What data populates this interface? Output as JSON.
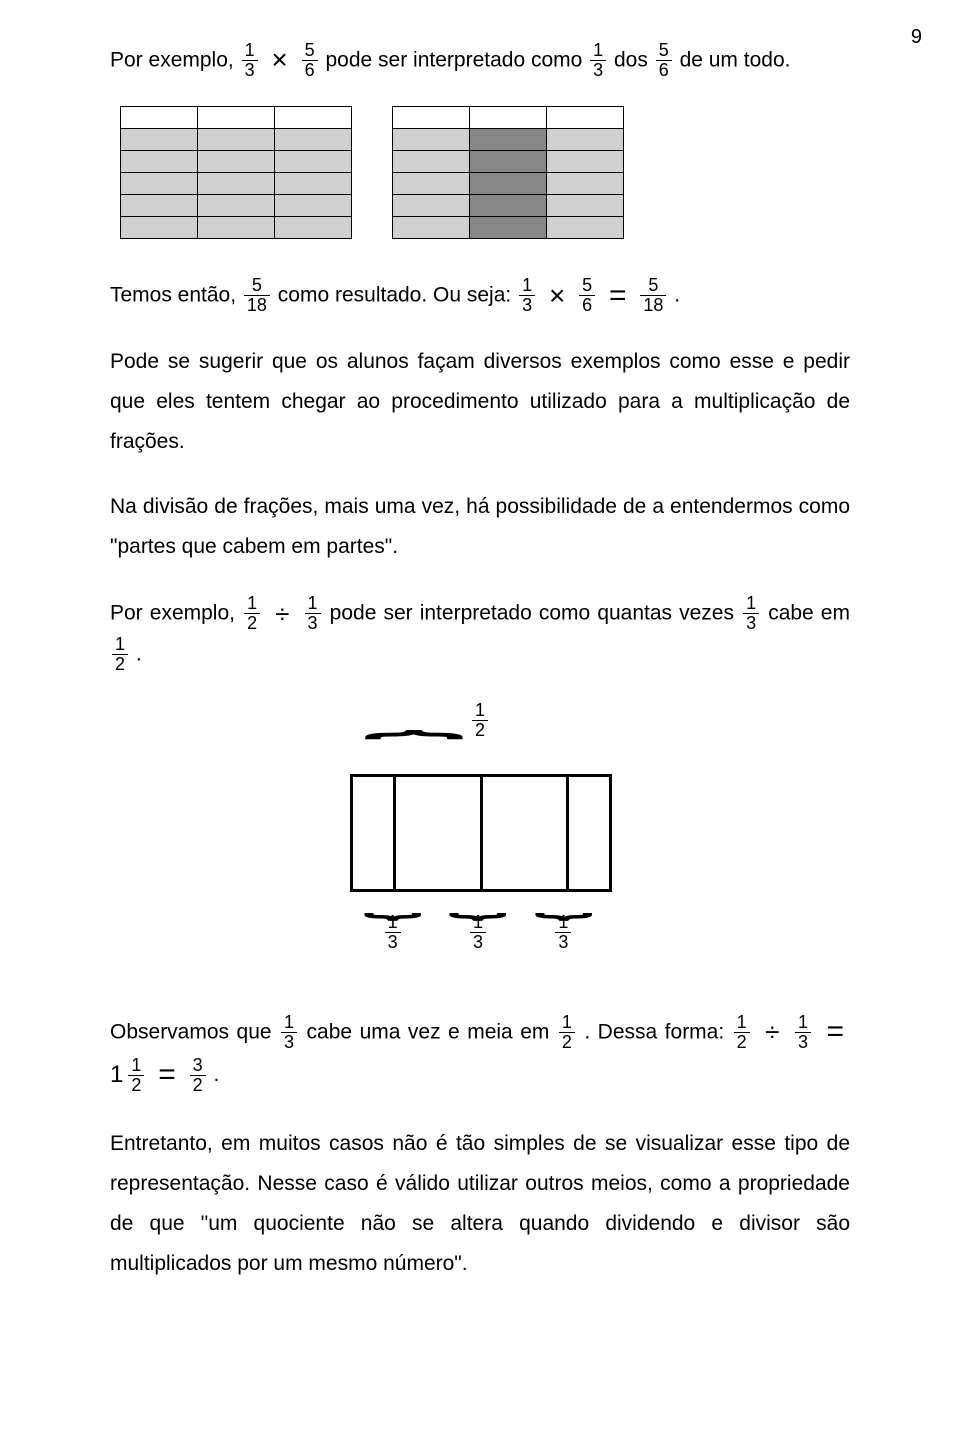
{
  "page_number": "9",
  "p1": {
    "t1": "Por exemplo, ",
    "f1": {
      "n": "1",
      "d": "3"
    },
    "op1": "×",
    "f2": {
      "n": "5",
      "d": "6"
    },
    "t2": " pode ser interpretado como ",
    "f3": {
      "n": "1",
      "d": "3"
    },
    "t3": " dos ",
    "f4": {
      "n": "5",
      "d": "6"
    },
    "t4": " de um todo."
  },
  "grid_left": {
    "rows": 6,
    "cols": 3,
    "cells": [
      [
        "w",
        "w",
        "w"
      ],
      [
        "l",
        "l",
        "l"
      ],
      [
        "l",
        "l",
        "l"
      ],
      [
        "l",
        "l",
        "l"
      ],
      [
        "l",
        "l",
        "l"
      ],
      [
        "l",
        "l",
        "l"
      ]
    ]
  },
  "grid_right": {
    "rows": 6,
    "cols": 3,
    "cells": [
      [
        "w",
        "w",
        "w"
      ],
      [
        "l",
        "d",
        "l"
      ],
      [
        "l",
        "d",
        "l"
      ],
      [
        "l",
        "d",
        "l"
      ],
      [
        "l",
        "d",
        "l"
      ],
      [
        "l",
        "d",
        "l"
      ]
    ]
  },
  "grid_colors": {
    "w": "#ffffff",
    "l": "#d0d0d0",
    "d": "#878787",
    "border": "#000000"
  },
  "p2": {
    "t1": "Temos então, ",
    "f1": {
      "n": "5",
      "d": "18"
    },
    "t2": " como resultado. Ou seja: ",
    "f2": {
      "n": "1",
      "d": "3"
    },
    "op1": "×",
    "f3": {
      "n": "5",
      "d": "6"
    },
    "eq": "=",
    "f4": {
      "n": "5",
      "d": "18"
    },
    "t3": " ."
  },
  "p3": "Pode se sugerir que os alunos façam diversos exemplos como esse e pedir que eles tentem chegar ao procedimento utilizado para a multiplicação de frações.",
  "p4": "Na divisão de frações, mais uma vez, há possibilidade de a entendermos como \"partes que cabem em partes\".",
  "p5": {
    "t1": "Por exemplo, ",
    "f1": {
      "n": "1",
      "d": "2"
    },
    "op1": "÷",
    "f2": {
      "n": "1",
      "d": "3"
    },
    "t2": " pode ser interpretado como quantas vezes ",
    "f3": {
      "n": "1",
      "d": "3"
    },
    "t3": " cabe em ",
    "f4": {
      "n": "1",
      "d": "2"
    },
    "t4": " ."
  },
  "fig": {
    "top_label": {
      "n": "1",
      "d": "2"
    },
    "bottom_labels": [
      {
        "n": "1",
        "d": "3"
      },
      {
        "n": "1",
        "d": "3"
      },
      {
        "n": "1",
        "d": "3"
      }
    ]
  },
  "p6": {
    "t1": "Observamos que ",
    "f1": {
      "n": "1",
      "d": "3"
    },
    "t2": " cabe uma vez e meia em ",
    "f2": {
      "n": "1",
      "d": "2"
    },
    "t3": " . Dessa forma: ",
    "f3": {
      "n": "1",
      "d": "2"
    },
    "op1": "÷",
    "f4": {
      "n": "1",
      "d": "3"
    },
    "eq1": "=",
    "mix": {
      "w": "1",
      "n": "1",
      "d": "2"
    },
    "eq2": "=",
    "f5": {
      "n": "3",
      "d": "2"
    },
    "t4": "."
  },
  "p7": "Entretanto, em muitos casos não é tão simples de se visualizar esse tipo de representação. Nesse caso é válido utilizar outros meios, como a propriedade de que \"um quociente não se altera quando dividendo e divisor são multiplicados por um mesmo número\"."
}
